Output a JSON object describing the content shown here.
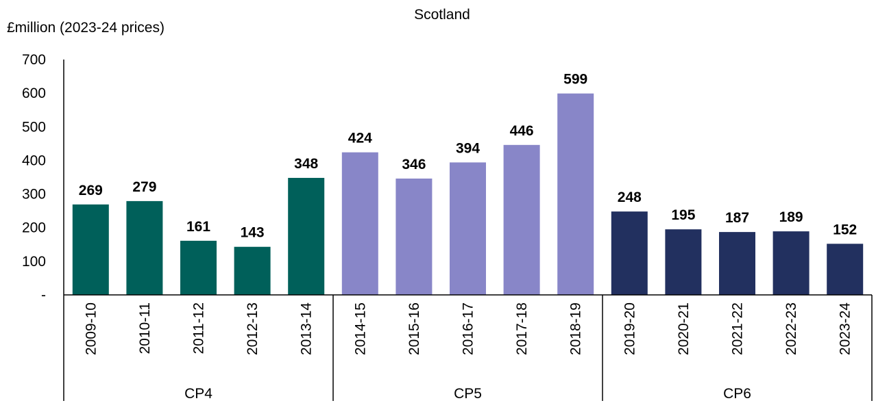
{
  "chart_data": {
    "type": "bar",
    "title": "Scotland",
    "ylabel": "£million (2023-24 prices)",
    "xlabel": "",
    "ylim": [
      0,
      700
    ],
    "yticks": [
      {
        "value": 0,
        "label": "-"
      },
      {
        "value": 100,
        "label": "100"
      },
      {
        "value": 200,
        "label": "200"
      },
      {
        "value": 300,
        "label": "300"
      },
      {
        "value": 400,
        "label": "400"
      },
      {
        "value": 500,
        "label": "500"
      },
      {
        "value": 600,
        "label": "600"
      },
      {
        "value": 700,
        "label": "700"
      }
    ],
    "grid": false,
    "legend": "none",
    "categories": [
      "2009-10",
      "2010-11",
      "2011-12",
      "2012-13",
      "2013-14",
      "2014-15",
      "2015-16",
      "2016-17",
      "2017-18",
      "2018-19",
      "2019-20",
      "2020-21",
      "2021-22",
      "2022-23",
      "2023-24"
    ],
    "values": [
      269,
      279,
      161,
      143,
      348,
      424,
      346,
      394,
      446,
      599,
      248,
      195,
      187,
      189,
      152
    ],
    "data_labels": [
      "269",
      "279",
      "161",
      "143",
      "348",
      "424",
      "346",
      "394",
      "446",
      "599",
      "248",
      "195",
      "187",
      "189",
      "152"
    ],
    "groups": [
      {
        "label": "CP4",
        "start": 0,
        "count": 5,
        "color": "#00605A"
      },
      {
        "label": "CP5",
        "start": 5,
        "count": 5,
        "color": "#8886C8"
      },
      {
        "label": "CP6",
        "start": 10,
        "count": 5,
        "color": "#22305F"
      }
    ]
  }
}
